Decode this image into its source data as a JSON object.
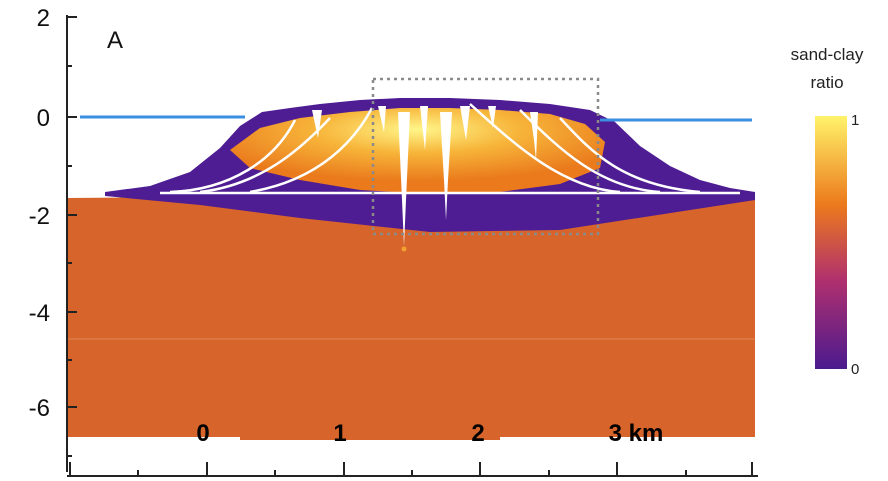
{
  "panel_label": "A",
  "y_axis": {
    "ticks": [
      "2",
      "0",
      "-2",
      "-4",
      "-6"
    ]
  },
  "x_axis": {
    "ticks": [
      "0",
      "1",
      "2",
      "3 km"
    ]
  },
  "colorbar": {
    "title_line1": "sand-clay",
    "title_line2": "ratio",
    "max_label": "1",
    "min_label": "0",
    "colors": {
      "low": "#4b1a8f",
      "mid": "#e8701a",
      "high": "#fff36a"
    }
  },
  "colors": {
    "substrate": "#d7642a",
    "sea_level": "#3a8fe0",
    "frame": "#222222",
    "inset_box": "#8a8a8a"
  }
}
